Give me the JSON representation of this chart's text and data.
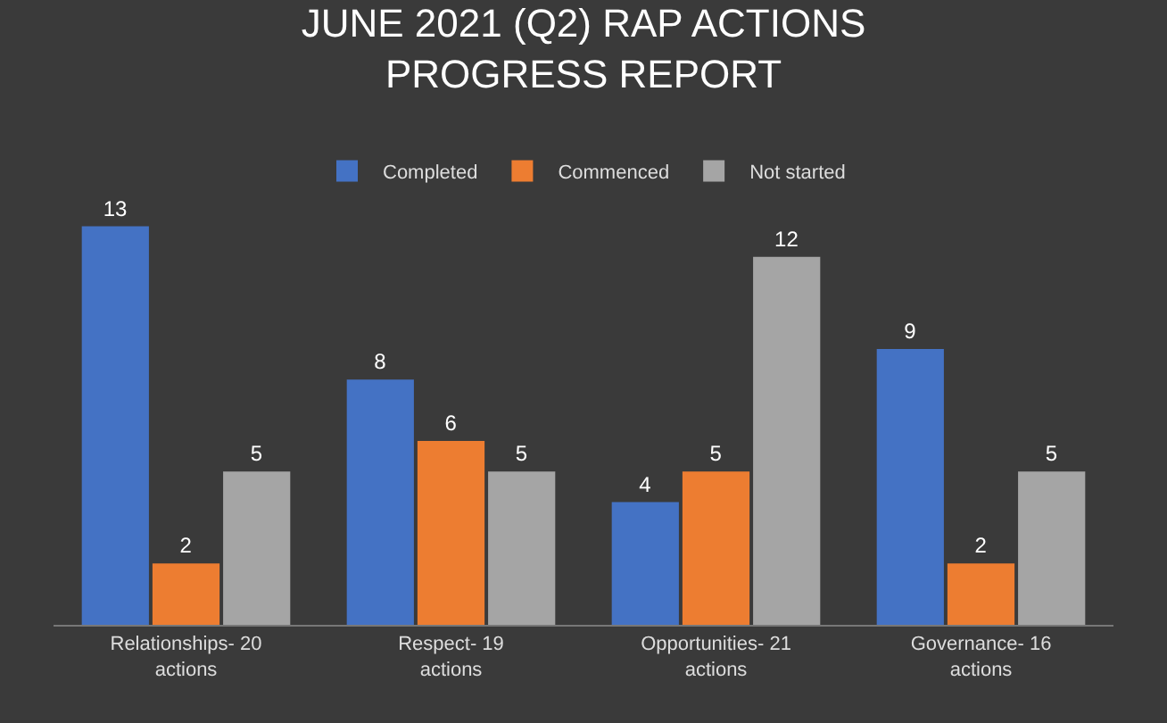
{
  "chart_data": {
    "type": "bar",
    "title": "JUNE 2021 (Q2) RAP ACTIONS PROGRESS REPORT",
    "categories": [
      "Relationships- 20 actions",
      "Respect- 19 actions",
      "Opportunities- 21 actions",
      "Governance- 16 actions"
    ],
    "series": [
      {
        "name": "Completed",
        "color": "#4472c4",
        "values": [
          13,
          8,
          4,
          9
        ]
      },
      {
        "name": "Commenced",
        "color": "#ed7d31",
        "values": [
          2,
          6,
          5,
          2
        ]
      },
      {
        "name": "Not started",
        "color": "#a5a5a5",
        "values": [
          5,
          5,
          12,
          5
        ]
      }
    ],
    "data_labels": true,
    "legend": "top"
  }
}
